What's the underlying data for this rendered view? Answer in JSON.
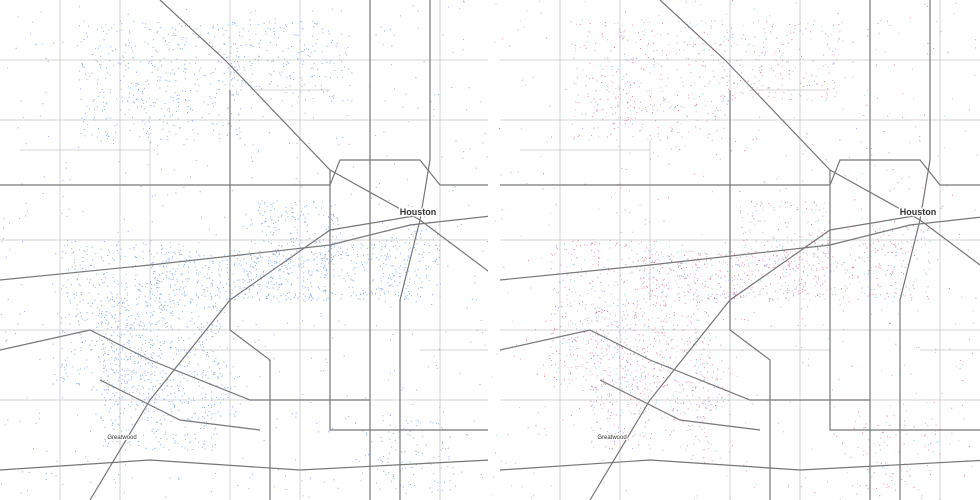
{
  "maps": [
    {
      "labels": {
        "city": "Houston",
        "town": "Greatwood"
      }
    },
    {
      "labels": {
        "city": "Houston",
        "town": "Greatwood"
      }
    }
  ]
}
